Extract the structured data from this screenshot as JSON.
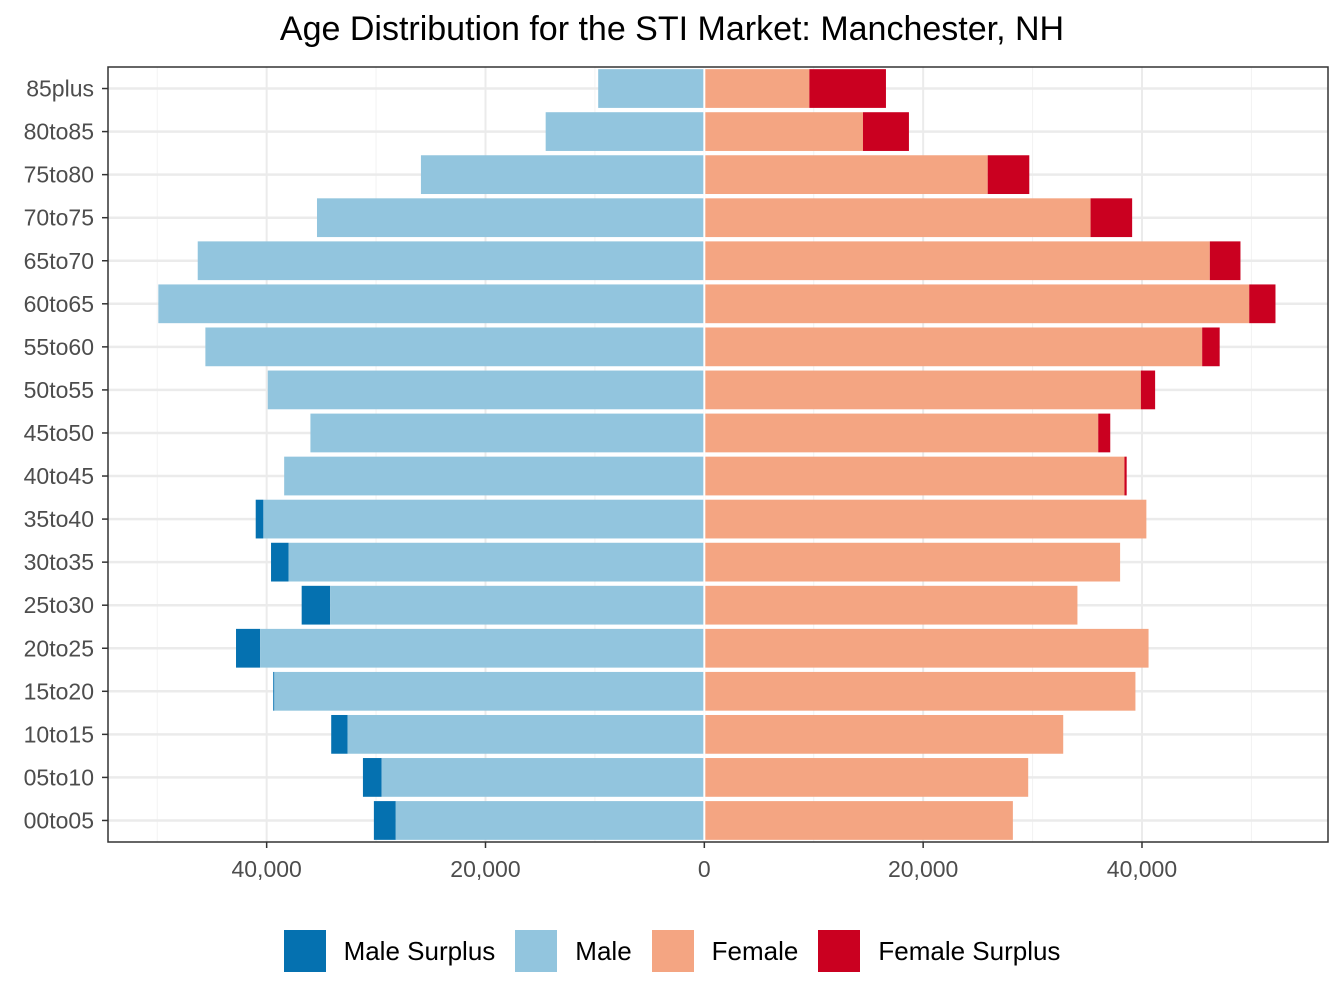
{
  "chart_data": {
    "type": "bar",
    "orientation": "horizontal",
    "title": "Age Distribution for the STI Market: Manchester, NH",
    "xlabel": "",
    "ylabel": "",
    "xlim": [
      -54500,
      57000
    ],
    "x_ticks": [
      -40000,
      -20000,
      0,
      20000,
      40000
    ],
    "x_tick_labels": [
      "40,000",
      "20,000",
      "0",
      "20,000",
      "40,000"
    ],
    "grid": true,
    "legend_position": "bottom",
    "categories": [
      "00to05",
      "05to10",
      "10to15",
      "15to20",
      "20to25",
      "25to30",
      "30to35",
      "35to40",
      "40to45",
      "45to50",
      "50to55",
      "55to60",
      "60to65",
      "65to70",
      "70to75",
      "75to80",
      "80to85",
      "85plus"
    ],
    "series": [
      {
        "name": "Male Surplus",
        "color": "#0571b0",
        "side": "left",
        "base": [
          28200,
          29500,
          32600,
          39300,
          40600,
          34200,
          38000,
          40300,
          0,
          0,
          0,
          0,
          0,
          0,
          0,
          0,
          0,
          0
        ],
        "values": [
          2000,
          1700,
          1500,
          100,
          2200,
          2600,
          1600,
          700,
          0,
          0,
          0,
          0,
          0,
          0,
          0,
          0,
          0,
          0
        ]
      },
      {
        "name": "Male",
        "color": "#92c5de",
        "side": "left",
        "base": [
          0,
          0,
          0,
          0,
          0,
          0,
          0,
          0,
          0,
          0,
          0,
          0,
          0,
          0,
          0,
          0,
          0,
          0
        ],
        "values": [
          28200,
          29500,
          32600,
          39300,
          40600,
          34200,
          38000,
          40300,
          38400,
          36000,
          39900,
          45600,
          49900,
          46300,
          35400,
          25900,
          14500,
          9700
        ]
      },
      {
        "name": "Female",
        "color": "#f4a582",
        "side": "right",
        "base": [
          0,
          0,
          0,
          0,
          0,
          0,
          0,
          0,
          0,
          0,
          0,
          0,
          0,
          0,
          0,
          0,
          0,
          0
        ],
        "values": [
          28200,
          29600,
          32800,
          39400,
          40600,
          34100,
          38000,
          40400,
          38400,
          36000,
          39900,
          45500,
          49800,
          46200,
          35300,
          25900,
          14500,
          9600
        ]
      },
      {
        "name": "Female Surplus",
        "color": "#ca0020",
        "side": "right",
        "base": [
          28200,
          29600,
          32800,
          39400,
          40600,
          34100,
          38000,
          40400,
          38400,
          36000,
          39900,
          45500,
          49800,
          46200,
          35300,
          25900,
          14500,
          9600
        ],
        "values": [
          0,
          0,
          0,
          0,
          0,
          0,
          0,
          0,
          200,
          1100,
          1300,
          1600,
          2400,
          2800,
          3800,
          3800,
          4200,
          7000
        ]
      }
    ],
    "legend": [
      "Male Surplus",
      "Male",
      "Female",
      "Female Surplus"
    ]
  }
}
